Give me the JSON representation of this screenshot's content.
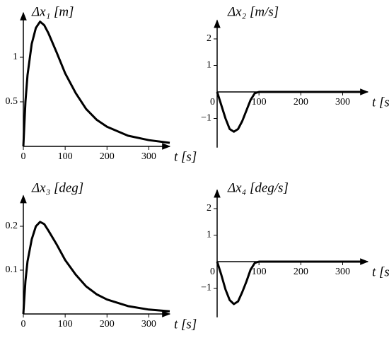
{
  "chart_data": [
    {
      "type": "line",
      "title": "Δx₁ [m]",
      "x_label": "t [s]",
      "x": [
        0,
        5,
        10,
        20,
        30,
        40,
        50,
        60,
        80,
        100,
        125,
        150,
        175,
        200,
        250,
        300,
        350
      ],
      "values": [
        0,
        0.5,
        0.8,
        1.15,
        1.33,
        1.4,
        1.36,
        1.27,
        1.05,
        0.82,
        0.6,
        0.42,
        0.3,
        0.22,
        0.12,
        0.07,
        0.04
      ],
      "color": "#000000",
      "xlim": [
        0,
        350
      ],
      "ylim": [
        0,
        1.5
      ],
      "xticks": [
        0,
        100,
        200,
        300
      ],
      "yticks": [
        0.5,
        1
      ]
    },
    {
      "type": "line",
      "title": "Δx₂ [m/s]",
      "x_label": "t [s]",
      "x": [
        0,
        10,
        20,
        30,
        40,
        50,
        60,
        70,
        80,
        90,
        100,
        200,
        300,
        350
      ],
      "values": [
        0,
        -0.5,
        -1.0,
        -1.4,
        -1.5,
        -1.4,
        -1.1,
        -0.7,
        -0.3,
        -0.05,
        0,
        0,
        0,
        0
      ],
      "color": "#000000",
      "xlim": [
        0,
        360
      ],
      "ylim": [
        -2.1,
        2.7
      ],
      "xticks": [
        0,
        100,
        200,
        300
      ],
      "yticks": [
        {
          "value": -1,
          "label": "−1"
        },
        1,
        2
      ]
    },
    {
      "type": "line",
      "title": "Δx₃ [deg]",
      "x_label": "t [s]",
      "x": [
        0,
        5,
        10,
        20,
        30,
        40,
        50,
        60,
        80,
        100,
        125,
        150,
        175,
        200,
        250,
        300,
        350
      ],
      "values": [
        0,
        0.075,
        0.12,
        0.17,
        0.2,
        0.21,
        0.205,
        0.19,
        0.158,
        0.123,
        0.09,
        0.063,
        0.045,
        0.033,
        0.018,
        0.01,
        0.006
      ],
      "color": "#000000",
      "xlim": [
        0,
        350
      ],
      "ylim": [
        0,
        0.27
      ],
      "xticks": [
        0,
        100,
        200,
        300
      ],
      "yticks": [
        0.1,
        0.2
      ]
    },
    {
      "type": "line",
      "title": "Δx₄ [deg/s]",
      "x_label": "t [s]",
      "x": [
        0,
        10,
        20,
        30,
        40,
        50,
        60,
        70,
        80,
        90,
        100,
        200,
        300,
        350
      ],
      "values": [
        0,
        -0.5,
        -1.05,
        -1.45,
        -1.6,
        -1.5,
        -1.15,
        -0.75,
        -0.3,
        -0.05,
        0,
        0,
        0,
        0
      ],
      "color": "#000000",
      "xlim": [
        0,
        360
      ],
      "ylim": [
        -2.1,
        2.7
      ],
      "xticks": [
        0,
        100,
        200,
        300
      ],
      "yticks": [
        {
          "value": -1,
          "label": "−1"
        },
        1,
        2
      ]
    }
  ]
}
